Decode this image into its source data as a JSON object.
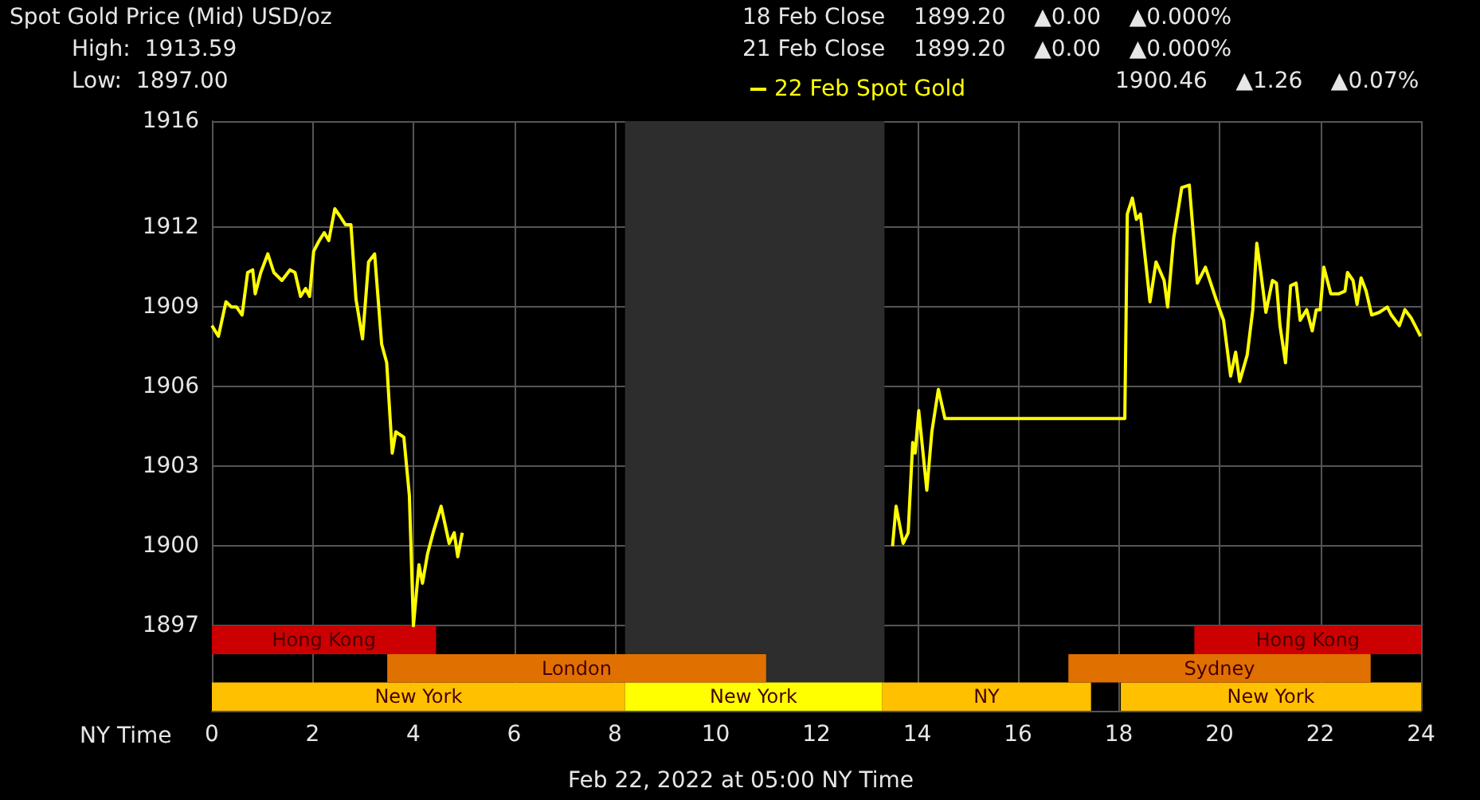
{
  "chart_data": {
    "type": "line",
    "title": "Spot Gold Price (Mid) USD/oz",
    "xlabel": "NY Time",
    "annotations": [
      "High:  1913.59",
      "Low:  1897.00",
      "18 Feb Close    1899.20    ▲0.00    ▲0.000%",
      "21 Feb Close    1899.20    ▲0.00    ▲0.000%",
      "1900.46    ▲1.26    ▲0.07%",
      "Feb 22, 2022 at 05:00 NY Time"
    ],
    "series": [
      {
        "name": "22 Feb Spot Gold",
        "color": "#ffff00",
        "x": [
          0,
          0.13,
          0.28,
          0.39,
          0.49,
          0.6,
          0.71,
          0.81,
          0.86,
          0.97,
          1.11,
          1.23,
          1.39,
          1.55,
          1.65,
          1.76,
          1.86,
          1.94,
          2.02,
          2.13,
          2.23,
          2.32,
          2.44,
          2.55,
          2.65,
          2.76,
          2.86,
          2.99,
          3.11,
          3.23,
          3.37,
          3.47,
          3.58,
          3.65,
          3.81,
          3.92,
          4.0,
          4.11,
          4.18,
          4.28,
          4.39,
          4.55,
          4.71,
          4.81,
          4.88,
          4.97,
          9,
          13.51,
          13.58,
          13.72,
          13.82,
          13.91,
          13.96,
          14.03,
          14.19,
          14.29,
          14.42,
          14.55,
          18.12,
          18.17,
          18.27,
          18.35,
          18.43,
          18.62,
          18.74,
          18.9,
          18.97,
          19.09,
          19.25,
          19.4,
          19.56,
          19.72,
          19.93,
          20.08,
          20.22,
          20.32,
          20.4,
          20.55,
          20.66,
          20.74,
          20.82,
          20.92,
          21.05,
          21.13,
          21.2,
          21.31,
          21.41,
          21.52,
          21.6,
          21.73,
          21.84,
          21.92,
          22.0,
          22.07,
          22.21,
          22.37,
          22.49,
          22.54,
          22.65,
          22.73,
          22.81,
          22.91,
          23.02,
          23.17,
          23.33,
          23.41,
          23.57,
          23.68,
          23.8,
          23.99
        ],
        "values": [
          1908.3,
          1907.9,
          1909.2,
          1909.0,
          1909.0,
          1908.7,
          1910.3,
          1910.4,
          1909.5,
          1910.3,
          1911.0,
          1910.3,
          1910.0,
          1910.4,
          1910.3,
          1909.4,
          1909.7,
          1909.4,
          1911.1,
          1911.5,
          1911.8,
          1911.5,
          1912.7,
          1912.4,
          1912.1,
          1912.1,
          1909.3,
          1907.8,
          1910.7,
          1911.0,
          1907.6,
          1906.9,
          1903.5,
          1904.3,
          1904.1,
          1901.9,
          1897.0,
          1899.3,
          1898.6,
          1899.7,
          1900.5,
          1901.5,
          1900.1,
          1900.5,
          1899.6,
          1900.5,
          null,
          1900.0,
          1901.5,
          1900.1,
          1900.5,
          1903.9,
          1903.5,
          1905.1,
          1902.1,
          1904.3,
          1905.9,
          1904.8,
          1904.8,
          1912.5,
          1913.1,
          1912.3,
          1912.5,
          1909.2,
          1910.7,
          1910.0,
          1909.0,
          1911.6,
          1913.5,
          1913.59,
          1909.9,
          1910.5,
          1909.3,
          1908.5,
          1906.4,
          1907.3,
          1906.2,
          1907.2,
          1908.9,
          1911.4,
          1910.3,
          1908.8,
          1910.0,
          1909.9,
          1908.3,
          1906.9,
          1909.8,
          1909.9,
          1908.5,
          1908.9,
          1908.1,
          1908.9,
          1908.9,
          1910.5,
          1909.5,
          1909.5,
          1909.6,
          1910.3,
          1910.0,
          1909.1,
          1910.1,
          1909.6,
          1908.7,
          1908.8,
          1909.0,
          1908.7,
          1908.3,
          1908.9,
          1908.6,
          1907.9
        ]
      }
    ],
    "xlim": [
      0,
      24
    ],
    "xticks": [
      0,
      2,
      4,
      6,
      8,
      10,
      12,
      14,
      16,
      18,
      20,
      22,
      24
    ],
    "ylim": [
      1893.8,
      1916
    ],
    "yticks": [
      1897,
      1900,
      1903,
      1906,
      1909,
      1912,
      1916
    ],
    "bands": [
      {
        "axis": "x",
        "from": 8.2,
        "to": 13.35,
        "color": "#2d2d2d"
      },
      {
        "axis": "x",
        "from": 0,
        "to": 8.2,
        "label": "New York",
        "color": "#ffc000"
      },
      {
        "axis": "x",
        "from": 8.2,
        "to": 13.3,
        "label": "New York",
        "color": "#ffff00"
      },
      {
        "axis": "x",
        "from": 13.3,
        "to": 17.45,
        "label": "NY",
        "color": "#ffc000"
      },
      {
        "axis": "x",
        "from": 18.04,
        "to": 24,
        "label": "New York",
        "color": "#ffc000"
      },
      {
        "axis": "x",
        "from": 3.48,
        "to": 11.0,
        "label": "London",
        "color": "#e07000"
      },
      {
        "axis": "x",
        "from": 17.0,
        "to": 23.0,
        "label": "Sydney",
        "color": "#e07000"
      },
      {
        "axis": "x",
        "from": 0,
        "to": 4.45,
        "label": "Hong Kong",
        "color": "#cc0000"
      },
      {
        "axis": "x",
        "from": 19.5,
        "to": 24,
        "label": "Hong Kong",
        "color": "#cc0000"
      }
    ],
    "grid": true,
    "legend": "top right",
    "marker": "none",
    "line_style": "solid"
  }
}
